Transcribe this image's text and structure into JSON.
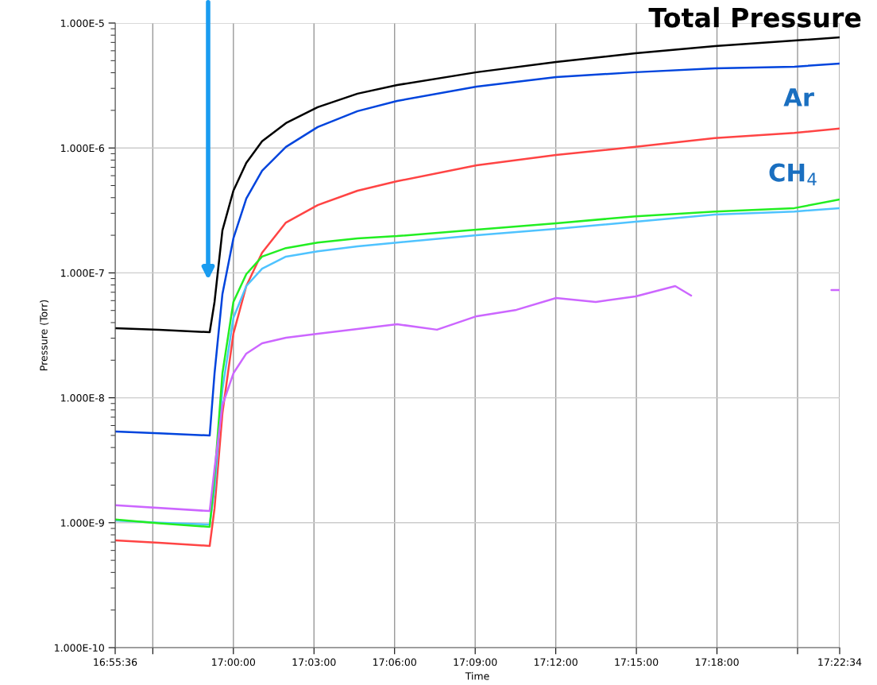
{
  "chart_data": {
    "type": "line",
    "xlabel": "Time",
    "ylabel": "Pressure (Torr)",
    "log": "y",
    "grid": true,
    "marker": "none",
    "line_style": "solid",
    "x": [
      16.9267,
      16.9538,
      16.9853,
      16.9883,
      16.9932,
      17.0,
      17.008,
      17.0178,
      17.0326,
      17.0523,
      17.077,
      17.1016,
      17.1509,
      17.2002,
      17.2495,
      17.2987,
      17.348,
      17.3761
    ],
    "series": [
      {
        "color": "#000000",
        "values": [
          3.61e-08,
          3.51e-08,
          3.35e-08,
          5.85e-08,
          2.19e-07,
          4.55e-07,
          7.59e-07,
          1.13e-06,
          1.58e-06,
          2.12e-06,
          2.72e-06,
          3.19e-06,
          4.04e-06,
          4.88e-06,
          5.73e-06,
          6.54e-06,
          7.24e-06,
          7.68e-06
        ]
      },
      {
        "color": "#0044dd",
        "values": [
          5.37e-09,
          5.2e-09,
          4.99e-09,
          1.57e-08,
          6.78e-08,
          1.89e-07,
          3.93e-07,
          6.56e-07,
          1.02e-06,
          1.47e-06,
          1.97e-06,
          2.38e-06,
          3.1e-06,
          3.69e-06,
          4.04e-06,
          4.34e-06,
          4.47e-06,
          4.74e-06
        ]
      },
      {
        "color": "#ff4444",
        "values": [
          7.23e-10,
          6.92e-10,
          6.52e-10,
          1.3e-09,
          7.53e-09,
          3.26e-08,
          7.84e-08,
          1.45e-07,
          2.53e-07,
          3.49e-07,
          4.55e-07,
          5.42e-07,
          7.26e-07,
          8.79e-07,
          1.02e-06,
          1.2e-06,
          1.32e-06,
          1.43e-06
        ]
      },
      {
        "color": "#4fc3ff",
        "values": [
          1.04e-09,
          1e-09,
          9.68e-10,
          1.87e-09,
          1.17e-08,
          4.36e-08,
          7.84e-08,
          1.08e-07,
          1.35e-07,
          1.49e-07,
          1.63e-07,
          1.75e-07,
          2e-07,
          2.25e-07,
          2.57e-07,
          2.93e-07,
          3.1e-07,
          3.3e-07
        ]
      },
      {
        "color": "#22ee22",
        "values": [
          1.06e-09,
          9.9e-10,
          9.27e-10,
          2.33e-09,
          1.57e-08,
          5.85e-08,
          9.77e-08,
          1.35e-07,
          1.58e-07,
          1.75e-07,
          1.89e-07,
          1.97e-07,
          2.22e-07,
          2.49e-07,
          2.84e-07,
          3.1e-07,
          3.3e-07,
          3.87e-07
        ]
      },
      {
        "color": "#cc66ff",
        "x": [
          16.9267,
          16.9853,
          16.9883,
          16.9932,
          17.0,
          17.008,
          17.0178,
          17.0326,
          17.0523,
          17.077,
          17.1016,
          17.1263,
          17.1509,
          17.1756,
          17.2002,
          17.2248,
          17.2495,
          17.2741,
          17.284,
          17.33,
          17.371,
          17.3761
        ],
        "values": [
          1.38e-09,
          1.24e-09,
          2.7e-09,
          8.71e-09,
          1.57e-08,
          2.26e-08,
          2.73e-08,
          3.03e-08,
          3.26e-08,
          3.56e-08,
          3.88e-08,
          3.51e-08,
          4.5e-08,
          5.06e-08,
          6.3e-08,
          5.85e-08,
          6.49e-08,
          7.84e-08,
          6.58e-08,
          null,
          7.29e-08,
          7.29e-08
        ]
      }
    ],
    "xlim": [
      16.92667,
      17.37611
    ],
    "xticks": [
      {
        "value": 16.92667,
        "label": "16:55:36"
      },
      {
        "value": 16.95,
        "label": null
      },
      {
        "value": 17.0,
        "label": "17:00:00"
      },
      {
        "value": 17.05,
        "label": "17:03:00"
      },
      {
        "value": 17.1,
        "label": "17:06:00"
      },
      {
        "value": 17.15,
        "label": "17:09:00"
      },
      {
        "value": 17.2,
        "label": "17:12:00"
      },
      {
        "value": 17.25,
        "label": "17:15:00"
      },
      {
        "value": 17.3,
        "label": "17:18:00"
      },
      {
        "value": 17.35,
        "label": null
      },
      {
        "value": 17.37611,
        "label": "17:22:34"
      }
    ],
    "ylim": [
      1e-10,
      1e-05
    ],
    "yticks": [
      {
        "value": 1e-10,
        "label": "1.000E-10"
      },
      {
        "value": 1e-09,
        "label": "1.000E-9"
      },
      {
        "value": 1e-08,
        "label": "1.000E-8"
      },
      {
        "value": 1e-07,
        "label": "1.000E-7"
      },
      {
        "value": 1e-06,
        "label": "1.000E-6"
      },
      {
        "value": 1e-05,
        "label": "1.000E-5"
      }
    ],
    "annotations": [
      "Total Pressure",
      "Ar",
      "CH$_{4}$"
    ]
  }
}
